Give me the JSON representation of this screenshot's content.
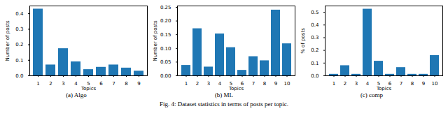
{
  "caption": "Fig. 4: Dataset statistics in terms of posts per topic.",
  "chart_data": [
    {
      "type": "bar",
      "title": "(a) Algo",
      "x_label": "Topics",
      "y_label": "Number of posts",
      "categories": [
        1,
        2,
        3,
        4,
        5,
        6,
        7,
        8,
        9
      ],
      "values": [
        0.43,
        0.07,
        0.175,
        0.09,
        0.04,
        0.055,
        0.07,
        0.05,
        0.03
      ],
      "color": "#1f77b4",
      "ylim": [
        0,
        0.45
      ],
      "yticks": [
        {
          "value": 0,
          "label": "0.0"
        },
        0.1,
        0.2,
        0.3,
        0.4
      ]
    },
    {
      "type": "bar",
      "title": "(b) ML",
      "x_label": "Topics",
      "y_label": "Number of posts",
      "categories": [
        1,
        2,
        3,
        4,
        5,
        6,
        7,
        8,
        9,
        10
      ],
      "values": [
        0.038,
        0.172,
        0.032,
        0.153,
        0.103,
        0.02,
        0.07,
        0.055,
        0.24,
        0.117
      ],
      "color": "#1f77b4",
      "ylim": [
        0,
        0.255
      ],
      "yticks": [
        {
          "value": 0,
          "label": "0.00"
        },
        0.05,
        {
          "value": 0.1,
          "label": "0.10"
        },
        0.15,
        {
          "value": 0.2,
          "label": "0.20"
        },
        0.25
      ]
    },
    {
      "type": "bar",
      "title": "(c) comp",
      "x_label": "Topics",
      "y_label": "% of posts",
      "categories": [
        1,
        2,
        3,
        4,
        5,
        6,
        7,
        8,
        9,
        10
      ],
      "values": [
        0.012,
        0.08,
        0.012,
        0.525,
        0.115,
        0.012,
        0.065,
        0.012,
        0.012,
        0.16
      ],
      "color": "#1f77b4",
      "ylim": [
        0,
        0.55
      ],
      "yticks": [
        {
          "value": 0,
          "label": "0.0"
        },
        0.1,
        0.2,
        0.3,
        0.4,
        0.5
      ]
    }
  ]
}
